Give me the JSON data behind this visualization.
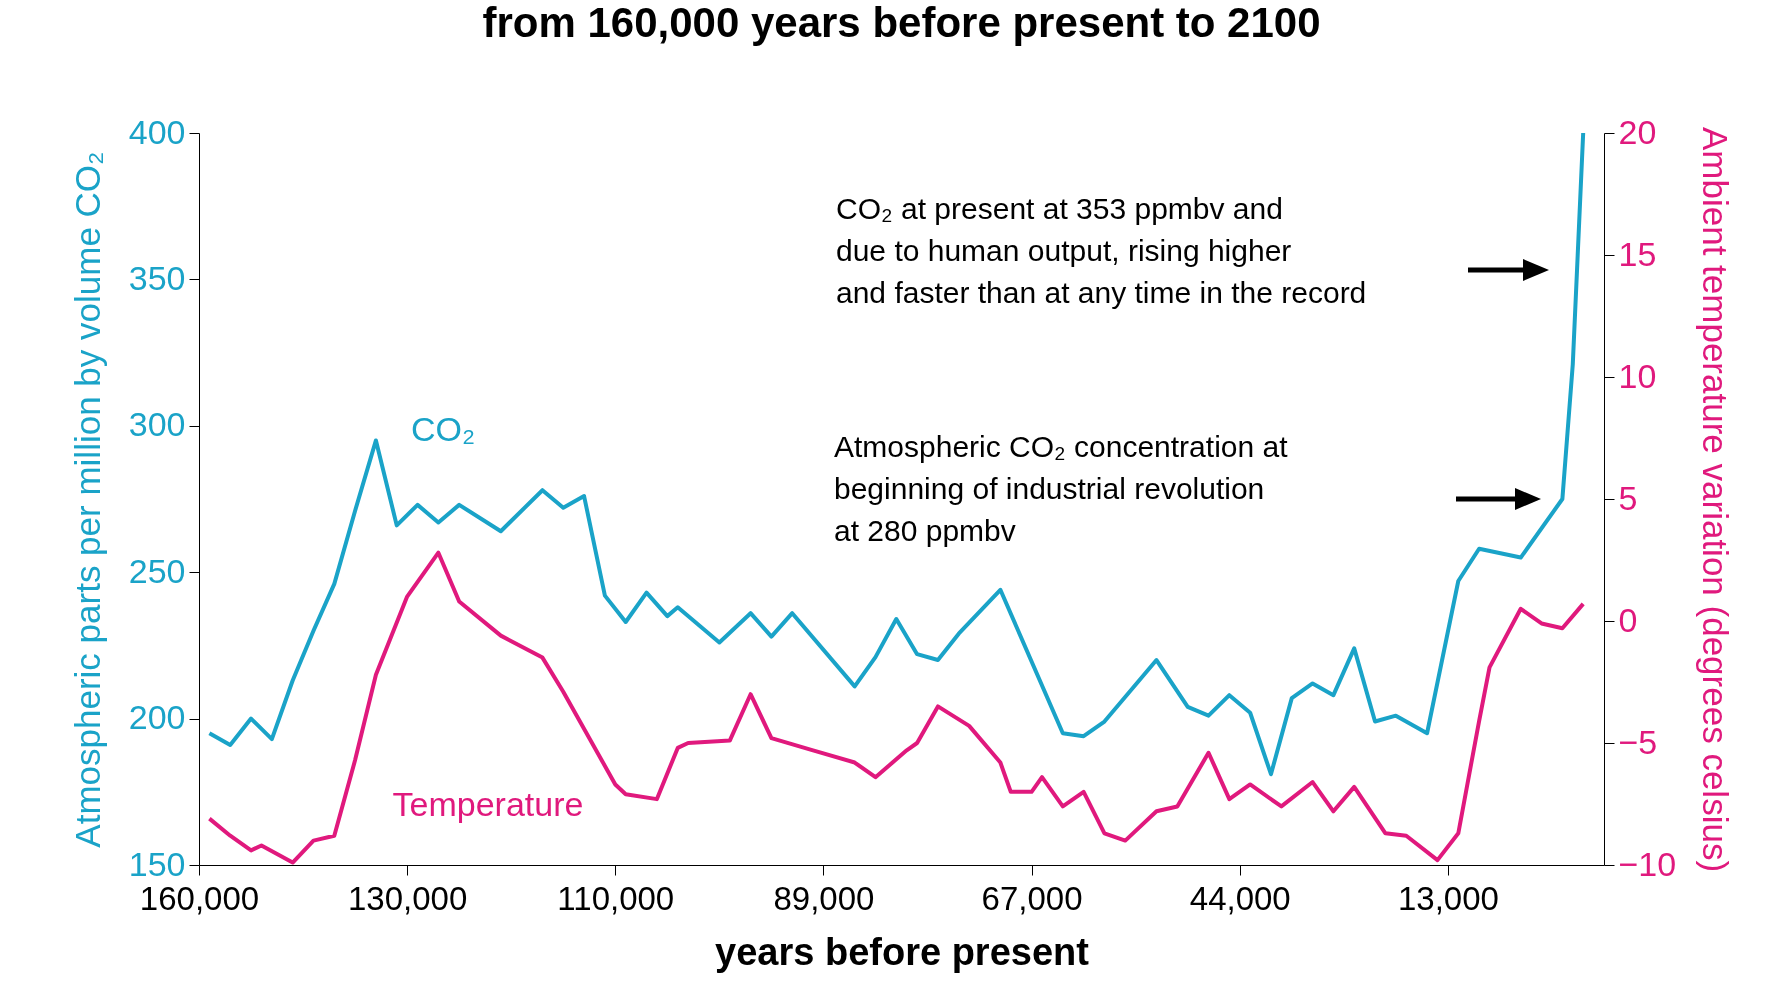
{
  "chart_data": {
    "type": "line",
    "title": "from 160,000 years before present to 2100",
    "xlabel": "years before present",
    "ylabel": "Atmospheric parts per million by volume CO₂",
    "y2label": "Ambient temperature variation (degrees celsius)",
    "categories": [
      "160,000",
      null,
      null,
      null,
      null,
      null,
      null,
      null,
      null,
      null,
      null,
      null,
      null,
      null,
      null,
      null,
      null,
      null,
      null,
      null,
      "130,000",
      null,
      null,
      null,
      null,
      null,
      null,
      null,
      null,
      null,
      null,
      null,
      null,
      null,
      null,
      null,
      null,
      null,
      null,
      null,
      "110,000",
      null,
      null,
      null,
      null,
      null,
      null,
      null,
      null,
      null,
      null,
      null,
      null,
      null,
      null,
      null,
      null,
      null,
      null,
      null,
      "89,000",
      null,
      null,
      null,
      null,
      null,
      null,
      null,
      null,
      null,
      null,
      null,
      null,
      null,
      null,
      null,
      null,
      null,
      null,
      null,
      "67,000",
      null,
      null,
      null,
      null,
      null,
      null,
      null,
      null,
      null,
      null,
      null,
      null,
      null,
      null,
      null,
      null,
      null,
      null,
      null,
      "44,000",
      null,
      null,
      null,
      null,
      null,
      null,
      null,
      null,
      null,
      null,
      null,
      null,
      null,
      null,
      null,
      null,
      null,
      null,
      null,
      "13,000",
      null,
      null,
      null,
      null,
      null,
      null,
      null,
      null,
      null,
      null,
      null,
      null,
      null,
      null,
      null
    ],
    "series": [
      {
        "name": "CO₂",
        "color": "#1aa3c8",
        "values": [
          null,
          195,
          null,
          191,
          null,
          200,
          null,
          193,
          null,
          213,
          null,
          230,
          null,
          246,
          null,
          271,
          null,
          295,
          null,
          266,
          null,
          273,
          null,
          267,
          null,
          273,
          null,
          null,
          null,
          264,
          null,
          null,
          null,
          278,
          null,
          272,
          null,
          276,
          null,
          242,
          null,
          233,
          null,
          243,
          null,
          235,
          238,
          null,
          null,
          null,
          226,
          null,
          null,
          236,
          null,
          228,
          null,
          236,
          null,
          null,
          null,
          null,
          null,
          211,
          null,
          221,
          null,
          234,
          null,
          222,
          null,
          220,
          null,
          229,
          null,
          null,
          null,
          244,
          null,
          null,
          null,
          null,
          null,
          195,
          null,
          194,
          null,
          199,
          null,
          null,
          null,
          null,
          220,
          null,
          null,
          204,
          null,
          201,
          null,
          208,
          null,
          202,
          null,
          181,
          null,
          207,
          null,
          212,
          null,
          208,
          null,
          224,
          null,
          199,
          null,
          201,
          null,
          null,
          195,
          null,
          null,
          247,
          null,
          258,
          null,
          null,
          null,
          255,
          null,
          null,
          null,
          275,
          321,
          400,
          null,
          null
        ]
      },
      {
        "name": "Temperature",
        "color": "#e0197d",
        "axis": "y2",
        "values": [
          null,
          -8.1,
          null,
          -8.8,
          null,
          -9.4,
          -9.2,
          null,
          null,
          -9.9,
          null,
          -9.0,
          null,
          -8.8,
          null,
          -5.7,
          null,
          -2.2,
          null,
          null,
          1.0,
          null,
          null,
          2.8,
          null,
          0.8,
          null,
          null,
          null,
          -0.6,
          null,
          null,
          null,
          -1.5,
          null,
          -2.9,
          null,
          null,
          null,
          null,
          -6.7,
          -7.1,
          null,
          null,
          -7.3,
          null,
          -5.2,
          -5.0,
          null,
          null,
          null,
          -4.9,
          null,
          -3.0,
          null,
          -4.8,
          null,
          null,
          null,
          -5.3,
          null,
          null,
          null,
          -5.8,
          null,
          -6.4,
          null,
          null,
          -5.3,
          -5.0,
          null,
          -3.5,
          null,
          null,
          -4.3,
          null,
          null,
          -5.8,
          -7.0,
          null,
          -7.0,
          -6.4,
          null,
          -7.6,
          null,
          -7.0,
          null,
          -8.7,
          null,
          -9.0,
          null,
          null,
          -7.8,
          null,
          -7.6,
          null,
          null,
          -5.4,
          null,
          -7.3,
          null,
          -6.7,
          null,
          null,
          -7.6,
          null,
          null,
          -6.6,
          null,
          -7.8,
          null,
          -6.8,
          null,
          null,
          -8.7,
          null,
          -8.8,
          null,
          null,
          -9.8,
          null,
          -8.7,
          null,
          -4.1,
          -1.9,
          null,
          null,
          0.5,
          null,
          -0.1,
          null,
          -0.3,
          null,
          0.7,
          null,
          null
        ]
      }
    ],
    "ylim": [
      150,
      400
    ],
    "yticks": [
      150,
      200,
      250,
      300,
      350,
      400
    ],
    "y2lim": [
      -10,
      20
    ],
    "y2ticks": [
      -10,
      -5,
      0,
      5,
      10,
      15,
      20
    ],
    "annotations": [
      "CO₂ at present at 353 ppmbv and\ndue to human output, rising higher\nand faster than at any time in the record",
      "Atmospheric CO₂ concentration at\nbeginning of industrial revolution\nat 280 ppmbv"
    ]
  }
}
